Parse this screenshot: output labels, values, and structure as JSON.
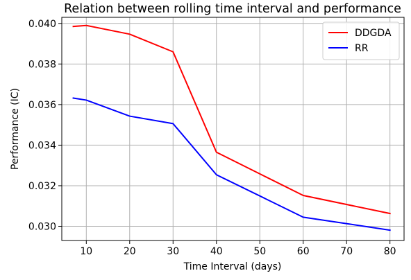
{
  "chart_data": {
    "type": "line",
    "title": "Relation between rolling time interval and performance",
    "xlabel": "Time Interval (days)",
    "ylabel": "Performance (IC)",
    "xlim": [
      4.35,
      83.25
    ],
    "ylim": [
      0.0293,
      0.0403
    ],
    "xticks": [
      10,
      20,
      30,
      40,
      50,
      60,
      70,
      80
    ],
    "yticks": [
      0.03,
      0.032,
      0.034,
      0.036,
      0.038,
      0.04
    ],
    "ytick_labels": [
      "0.030",
      "0.032",
      "0.034",
      "0.036",
      "0.038",
      "0.040"
    ],
    "x": [
      7,
      10,
      20,
      30,
      40,
      60,
      80
    ],
    "series": [
      {
        "name": "DDGDA",
        "color": "#ff0000",
        "values": [
          0.03985,
          0.0399,
          0.03947,
          0.0386,
          0.03365,
          0.03152,
          0.03063
        ]
      },
      {
        "name": "RR",
        "color": "#0000ff",
        "values": [
          0.03632,
          0.03622,
          0.03543,
          0.03506,
          0.03254,
          0.03045,
          0.02981
        ]
      }
    ],
    "grid": true,
    "legend_position": "top-right"
  }
}
